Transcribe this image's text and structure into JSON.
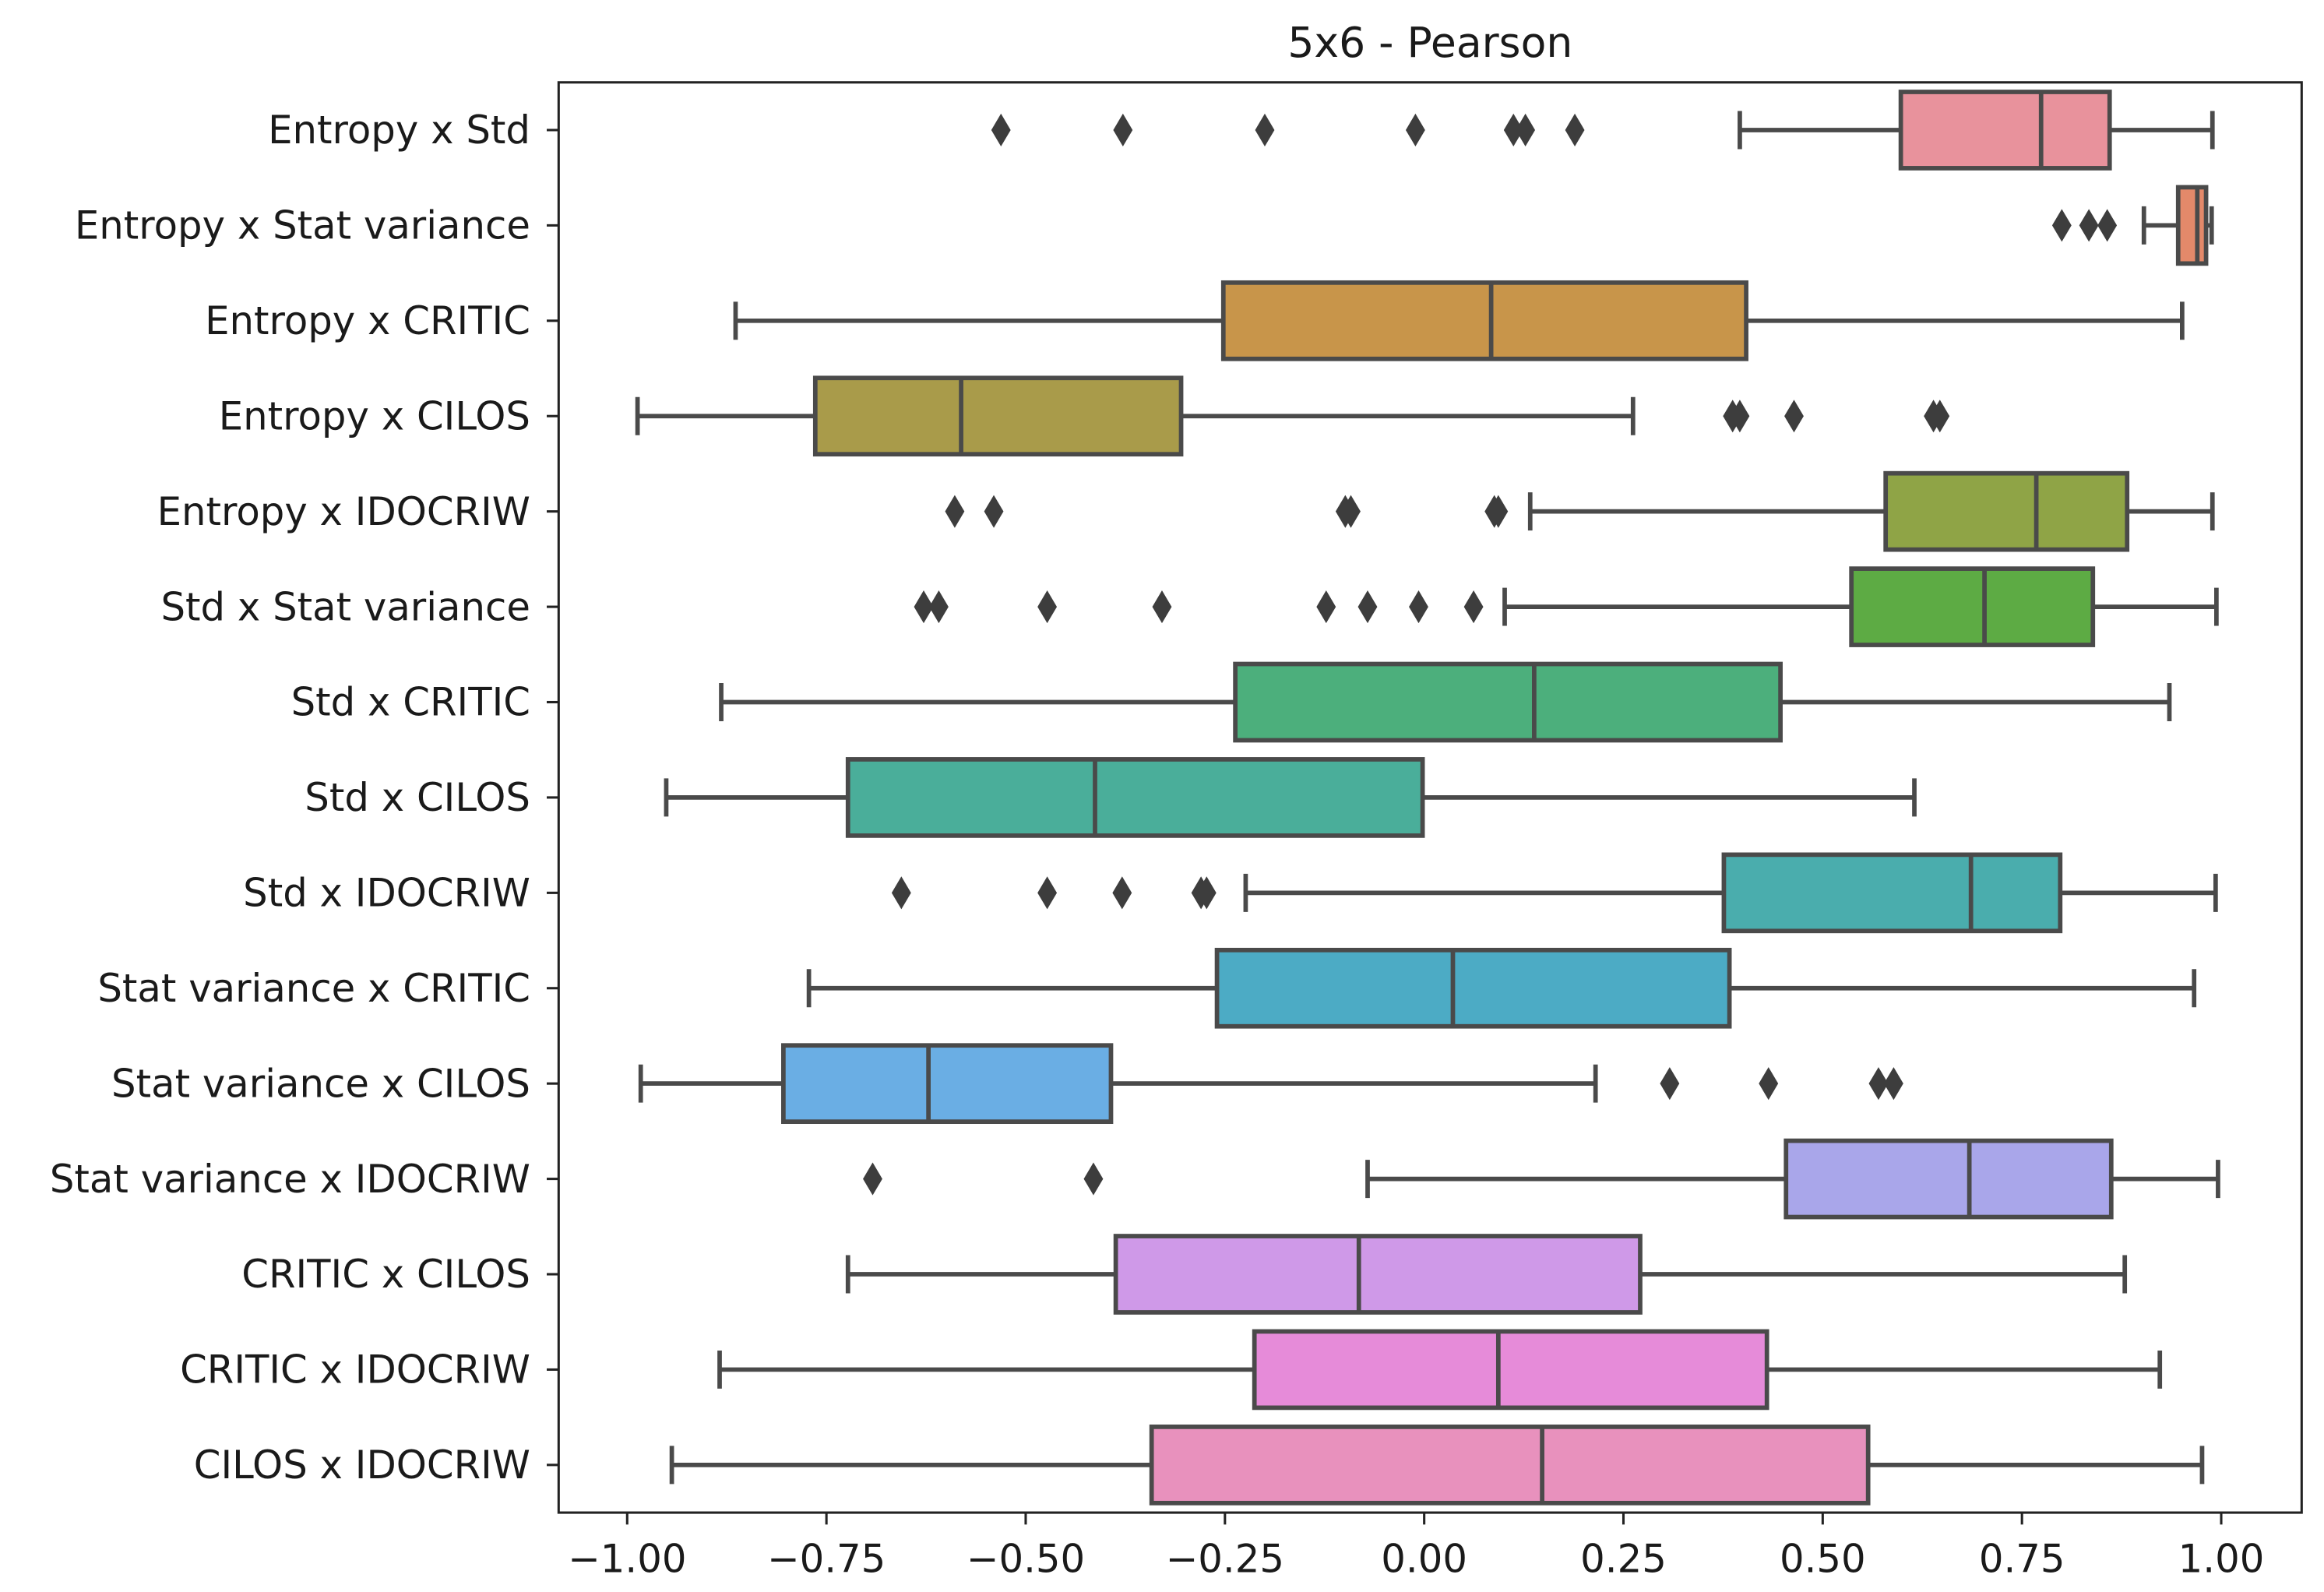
{
  "chart_data": {
    "type": "boxplot",
    "orientation": "horizontal",
    "title": "5x6 - Pearson",
    "xlabel": "",
    "ylabel": "",
    "xlim": [
      -1.1,
      1.1
    ],
    "xticks": [
      -1.0,
      -0.75,
      -0.5,
      -0.25,
      0.0,
      0.25,
      0.5,
      0.75,
      1.0
    ],
    "xtick_labels": [
      "−1.00",
      "−0.75",
      "−0.50",
      "−0.25",
      "0.00",
      "0.25",
      "0.50",
      "0.75",
      "1.00"
    ],
    "grid": false,
    "series": [
      {
        "name": "Entropy x Std",
        "color": "#e8929c",
        "whisker_low": 0.396,
        "q1": 0.598,
        "median": 0.774,
        "q3": 0.86,
        "whisker_high": 0.989,
        "outliers": [
          -0.531,
          -0.378,
          -0.2,
          -0.011,
          0.112,
          0.127,
          0.189
        ]
      },
      {
        "name": "Entropy x Stat variance",
        "color": "#e3896a",
        "whisker_low": 0.903,
        "q1": 0.946,
        "median": 0.97,
        "q3": 0.981,
        "whisker_high": 0.988,
        "outliers": [
          0.8,
          0.834,
          0.857
        ]
      },
      {
        "name": "Entropy x CRITIC",
        "color": "#c8954a",
        "whisker_low": -0.864,
        "q1": -0.252,
        "median": 0.084,
        "q3": 0.404,
        "whisker_high": 0.951,
        "outliers": []
      },
      {
        "name": "Entropy x CILOS",
        "color": "#a99b4a",
        "whisker_low": -0.987,
        "q1": -0.764,
        "median": -0.581,
        "q3": -0.305,
        "whisker_high": 0.262,
        "outliers": [
          0.387,
          0.396,
          0.464,
          0.639,
          0.647
        ]
      },
      {
        "name": "Entropy x IDOCRIW",
        "color": "#8fa446",
        "whisker_low": 0.133,
        "q1": 0.579,
        "median": 0.768,
        "q3": 0.882,
        "whisker_high": 0.989,
        "outliers": [
          -0.589,
          -0.54,
          -0.099,
          -0.092,
          0.088,
          0.093
        ]
      },
      {
        "name": "Std x Stat variance",
        "color": "#5dab44",
        "whisker_low": 0.101,
        "q1": 0.536,
        "median": 0.703,
        "q3": 0.839,
        "whisker_high": 0.994,
        "outliers": [
          -0.628,
          -0.609,
          -0.473,
          -0.329,
          -0.123,
          -0.071,
          -0.007,
          0.062
        ]
      },
      {
        "name": "Std x CRITIC",
        "color": "#4caf7c",
        "whisker_low": -0.882,
        "q1": -0.237,
        "median": 0.138,
        "q3": 0.447,
        "whisker_high": 0.935,
        "outliers": []
      },
      {
        "name": "Std x CILOS",
        "color": "#4aae9a",
        "whisker_low": -0.951,
        "q1": -0.723,
        "median": -0.413,
        "q3": -0.002,
        "whisker_high": 0.615,
        "outliers": []
      },
      {
        "name": "Std x IDOCRIW",
        "color": "#4aadad",
        "whisker_low": -0.224,
        "q1": 0.376,
        "median": 0.686,
        "q3": 0.798,
        "whisker_high": 0.993,
        "outliers": [
          -0.656,
          -0.473,
          -0.379,
          -0.28,
          -0.273
        ]
      },
      {
        "name": "Stat variance x CRITIC",
        "color": "#4cabc5",
        "whisker_low": -0.772,
        "q1": -0.26,
        "median": 0.036,
        "q3": 0.383,
        "whisker_high": 0.966,
        "outliers": []
      },
      {
        "name": "Stat variance x CILOS",
        "color": "#6aaee4",
        "whisker_low": -0.983,
        "q1": -0.804,
        "median": -0.622,
        "q3": -0.393,
        "whisker_high": 0.215,
        "outliers": [
          0.308,
          0.432,
          0.57,
          0.589
        ]
      },
      {
        "name": "Stat variance x IDOCRIW",
        "color": "#a9a6ea",
        "whisker_low": -0.071,
        "q1": 0.454,
        "median": 0.684,
        "q3": 0.862,
        "whisker_high": 0.996,
        "outliers": [
          -0.692,
          -0.415
        ]
      },
      {
        "name": "CRITIC x CILOS",
        "color": "#cf99e8",
        "whisker_low": -0.723,
        "q1": -0.387,
        "median": -0.082,
        "q3": 0.271,
        "whisker_high": 0.879,
        "outliers": []
      },
      {
        "name": "CRITIC x IDOCRIW",
        "color": "#e68bd9",
        "whisker_low": -0.884,
        "q1": -0.213,
        "median": 0.093,
        "q3": 0.43,
        "whisker_high": 0.923,
        "outliers": []
      },
      {
        "name": "CILOS x IDOCRIW",
        "color": "#e891bd",
        "whisker_low": -0.944,
        "q1": -0.342,
        "median": 0.148,
        "q3": 0.557,
        "whisker_high": 0.976,
        "outliers": []
      }
    ]
  }
}
